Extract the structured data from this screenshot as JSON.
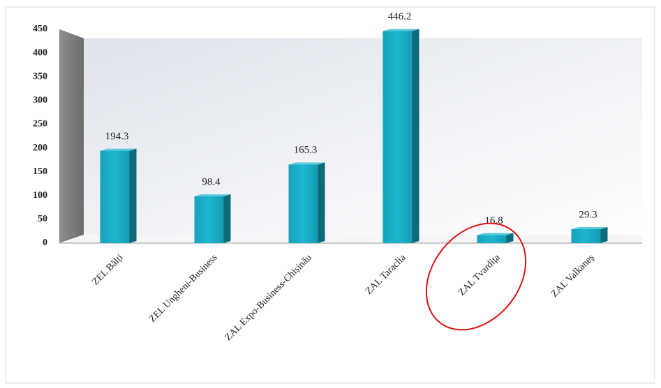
{
  "chart_data": {
    "type": "bar",
    "categories": [
      "ZEL Bălți",
      "ZEL Ungheni-Business",
      "ZAL Expo-Business-Chișinău",
      "ZAL Taraclia",
      "ZAL Tvardița",
      "ZAL Valkaneș"
    ],
    "values": [
      194.3,
      98.4,
      165.3,
      446.2,
      16.8,
      29.3
    ],
    "color": "#19abc4",
    "ylim": [
      0,
      450
    ],
    "yticks": [
      0,
      50,
      100,
      150,
      200,
      250,
      300,
      350,
      400,
      450
    ],
    "grid": false
  }
}
